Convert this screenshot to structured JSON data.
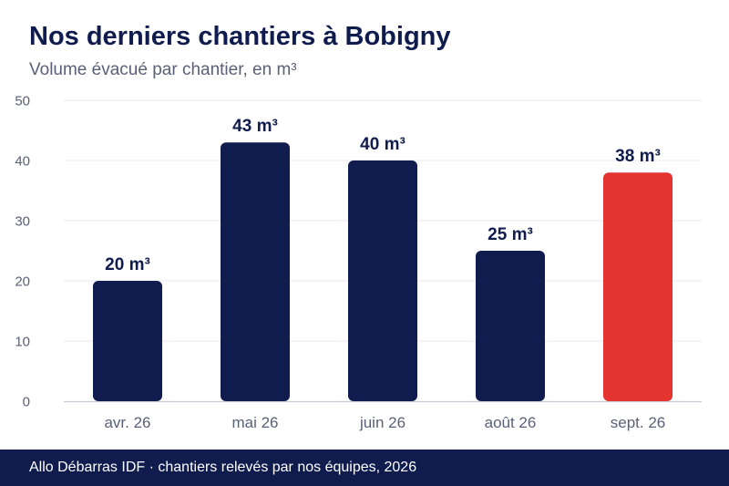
{
  "header": {
    "title": "Nos derniers chantiers à Bobigny",
    "subtitle": "Volume évacué par chantier, en m³"
  },
  "footer": {
    "text": "Allo Débarras IDF · chantiers relevés par nos équipes, 2026"
  },
  "colors": {
    "bar": "#0f1c4d",
    "highlight": "#e3342f",
    "axis_text": "#5a6077",
    "grid": "#e8e8ee"
  },
  "chart_data": {
    "type": "bar",
    "title": "Nos derniers chantiers à Bobigny",
    "subtitle": "Volume évacué par chantier, en m³",
    "categories": [
      "avr. 26",
      "mai 26",
      "juin 26",
      "août 26",
      "sept. 26"
    ],
    "values": [
      20,
      43,
      40,
      25,
      38
    ],
    "data_labels": [
      "20 m³",
      "43 m³",
      "40 m³",
      "25 m³",
      "38 m³"
    ],
    "highlight_index": 4,
    "ylim": [
      0,
      50
    ],
    "yticks": [
      0,
      10,
      20,
      30,
      40,
      50
    ],
    "grid": true,
    "legend": "none",
    "xlabel": "",
    "ylabel": ""
  }
}
